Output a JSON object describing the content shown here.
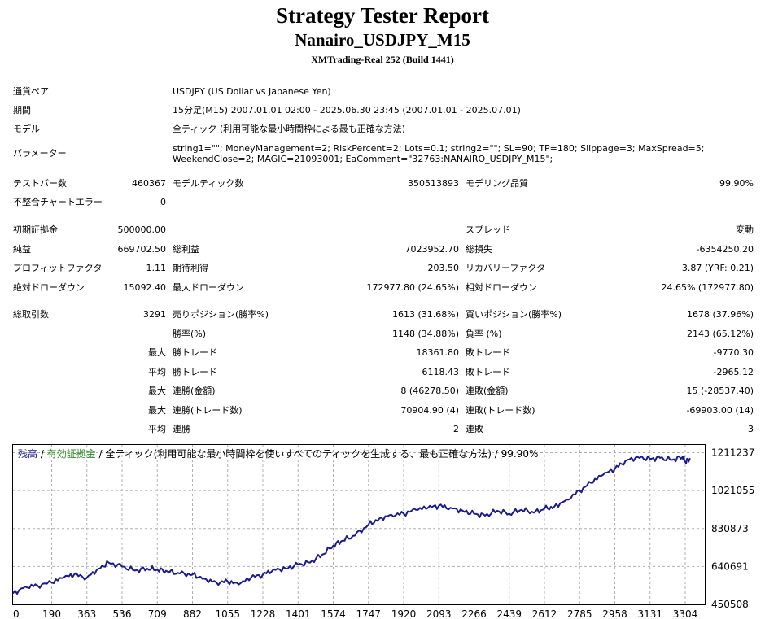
{
  "header": {
    "title": "Strategy Tester Report",
    "expert": "Nanairo_USDJPY_M15",
    "server": "XMTrading-Real 252 (Build 1441)"
  },
  "info": {
    "symbol_label": "通貨ペア",
    "symbol_value": "USDJPY (US Dollar vs Japanese Yen)",
    "period_label": "期間",
    "period_value": "15分足(M15) 2007.01.01 02:00 - 2025.06.30 23:45 (2007.01.01 - 2025.07.01)",
    "model_label": "モデル",
    "model_value": "全ティック (利用可能な最小時間枠による最も正確な方法)",
    "params_label": "パラメーター",
    "params_line1": "string1=\"\"; MoneyManagement=2; RiskPercent=2; Lots=0.1; string2=\"\"; SL=90; TP=180; Slippage=3; MaxSpread=5;",
    "params_line2": "WeekendClose=2; MAGIC=21093001; EaComment=\"32763:NANAIRO_USDJPY_M15\";"
  },
  "bars": {
    "bars_label": "テストバー数",
    "bars_value": "460367",
    "ticks_label": "モデルティック数",
    "ticks_value": "350513893",
    "quality_label": "モデリング品質",
    "quality_value": "99.90%",
    "errors_label": "不整合チャートエラー",
    "errors_value": "0"
  },
  "stats": {
    "deposit_label": "初期証拠金",
    "deposit_value": "500000.00",
    "spread_label": "スプレッド",
    "spread_value": "変動",
    "net_label": "純益",
    "net_value": "669702.50",
    "gross_profit_label": "総利益",
    "gross_profit_value": "7023952.70",
    "gross_loss_label": "総損失",
    "gross_loss_value": "-6354250.20",
    "pf_label": "プロフィットファクタ",
    "pf_value": "1.11",
    "payoff_label": "期待利得",
    "payoff_value": "203.50",
    "recovery_label": "リカバリーファクタ",
    "recovery_value": "3.87 (YRF: 0.21)",
    "abs_dd_label": "絶対ドローダウン",
    "abs_dd_value": "15092.40",
    "max_dd_label": "最大ドローダウン",
    "max_dd_value": "172977.80 (24.65%)",
    "rel_dd_label": "相対ドローダウン",
    "rel_dd_value": "24.65% (172977.80)"
  },
  "trades": {
    "total_label": "総取引数",
    "total_value": "3291",
    "short_label": "売りポジション(勝率%)",
    "short_value": "1613 (31.68%)",
    "long_label": "買いポジション(勝率%)",
    "long_value": "1678 (37.96%)",
    "winrate_label": "勝率(%)",
    "winrate_value": "1148 (34.88%)",
    "lossrate_label": "負率 (%)",
    "lossrate_value": "2143 (65.12%)",
    "max_prefix": "最大",
    "avg_prefix": "平均",
    "largest_win_label": "勝トレード",
    "largest_win_value": "18361.80",
    "largest_loss_label": "敗トレード",
    "largest_loss_value": "-9770.30",
    "avg_win_label": "勝トレード",
    "avg_win_value": "6118.43",
    "avg_loss_label": "敗トレード",
    "avg_loss_value": "-2965.12",
    "max_cons_wins_label": "連勝(金額)",
    "max_cons_wins_value": "8 (46278.50)",
    "max_cons_losses_label": "連敗(金額)",
    "max_cons_losses_value": "15 (-28537.40)",
    "max_cons_profit_label": "連勝(トレード数)",
    "max_cons_profit_value": "70904.90 (4)",
    "max_cons_loss_label": "連敗(トレード数)",
    "max_cons_loss_value": "-69903.00 (14)",
    "avg_cons_wins_label": "連勝",
    "avg_cons_wins_value": "2",
    "avg_cons_losses_label": "連敗",
    "avg_cons_losses_value": "3"
  },
  "chart_legend": {
    "balance": "残高",
    "sep1": " / ",
    "equity": "有効証拠金",
    "sep2": " / ",
    "rest": "全ティック(利用可能な最小時間枠を使いすべてのティックを生成する、最も正確な方法) / 99.90%"
  },
  "colors": {
    "balance_line": "#1a1a8c",
    "equity_label": "#2e8b22",
    "grid": "#b0b0b0"
  },
  "chart_data": {
    "type": "line",
    "title": "",
    "xlabel": "",
    "ylabel": "",
    "x_ticks": [
      "0",
      "190",
      "363",
      "536",
      "709",
      "882",
      "1055",
      "1228",
      "1401",
      "1574",
      "1747",
      "1920",
      "2093",
      "2266",
      "2439",
      "2612",
      "2785",
      "2958",
      "3131",
      "3304"
    ],
    "y_ticks": [
      "450508",
      "640691",
      "830873",
      "1021055",
      "1211237"
    ],
    "xlim": [
      0,
      3400
    ],
    "ylim": [
      450508,
      1250000
    ],
    "grid": true,
    "series": [
      {
        "name": "残高",
        "x": [
          0,
          60,
          120,
          190,
          250,
          300,
          363,
          420,
          470,
          536,
          600,
          660,
          709,
          760,
          820,
          882,
          940,
          1000,
          1055,
          1110,
          1170,
          1228,
          1280,
          1340,
          1401,
          1460,
          1520,
          1574,
          1620,
          1680,
          1747,
          1800,
          1860,
          1920,
          1980,
          2040,
          2093,
          2150,
          2210,
          2266,
          2320,
          2380,
          2439,
          2500,
          2560,
          2612,
          2660,
          2720,
          2785,
          2840,
          2900,
          2958,
          3010,
          3070,
          3131,
          3180,
          3240,
          3291,
          3304,
          3330
        ],
        "y": [
          505000,
          540000,
          545000,
          560000,
          585000,
          600000,
          585000,
          630000,
          660000,
          640000,
          620000,
          630000,
          625000,
          615000,
          605000,
          600000,
          580000,
          560000,
          565000,
          550000,
          585000,
          600000,
          625000,
          630000,
          650000,
          660000,
          700000,
          745000,
          770000,
          795000,
          850000,
          880000,
          900000,
          905000,
          925000,
          935000,
          945000,
          935000,
          920000,
          905000,
          895000,
          920000,
          905000,
          925000,
          910000,
          930000,
          940000,
          975000,
          1020000,
          1060000,
          1100000,
          1130000,
          1170000,
          1190000,
          1180000,
          1185000,
          1175000,
          1190000,
          1165000,
          1180000
        ]
      }
    ]
  }
}
